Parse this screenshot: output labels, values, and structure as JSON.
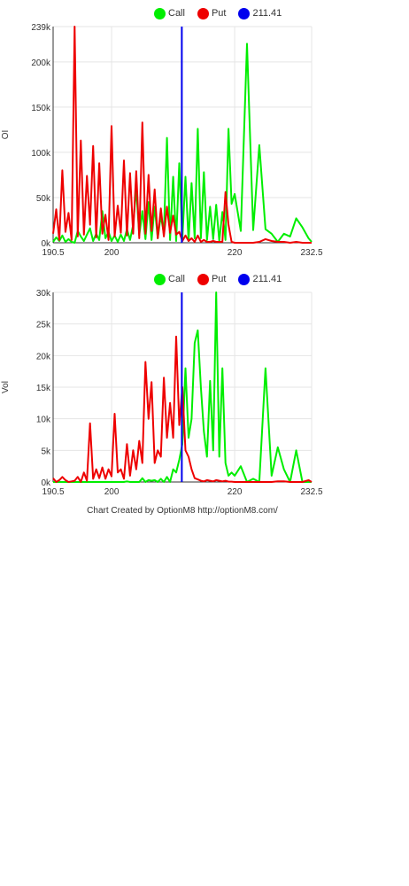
{
  "legend": {
    "call_label": "Call",
    "put_label": "Put",
    "price_label": "211.41",
    "call_color": "#00ee00",
    "put_color": "#ee0000",
    "price_color": "#0000ee"
  },
  "footer": "Chart Created by OptionM8 http://optionM8.com/",
  "chart_data": [
    {
      "type": "line",
      "ylabel": "OI",
      "xlim": [
        190.5,
        232.5
      ],
      "ylim": [
        0,
        239000
      ],
      "x_ticks": [
        190.5,
        200,
        220,
        232.5
      ],
      "x_tick_labels": [
        "190.5",
        "200",
        "220",
        "232.5"
      ],
      "y_ticks": [
        0,
        50000,
        100000,
        150000,
        200000,
        239000
      ],
      "y_tick_labels": [
        "0k",
        "50k",
        "100k",
        "150k",
        "200k",
        "239k"
      ],
      "grid": true,
      "legend_position": "top",
      "vline": {
        "name": "211.41",
        "x": 211.41
      },
      "series": [
        {
          "name": "Call",
          "x": [
            190.5,
            191,
            191.5,
            192,
            192.5,
            193,
            193.5,
            194,
            194.5,
            195,
            195.5,
            196,
            196.5,
            197,
            197.5,
            198,
            198.5,
            199,
            199.5,
            200,
            200.5,
            201,
            201.5,
            202,
            202.5,
            203,
            203.5,
            204,
            204.5,
            205,
            205.5,
            206,
            206.5,
            207,
            207.5,
            208,
            208.5,
            209,
            209.5,
            210,
            210.5,
            211,
            211.5,
            212,
            212.5,
            213,
            213.5,
            214,
            214.5,
            215,
            215.5,
            216,
            216.5,
            217,
            217.5,
            218,
            218.5,
            219,
            219.5,
            220,
            221,
            222,
            223,
            224,
            225,
            226,
            227,
            228,
            229,
            230,
            231,
            232,
            232.5
          ],
          "values": [
            1000,
            6000,
            2000,
            8000,
            1000,
            4000,
            1000,
            0,
            13000,
            7000,
            2000,
            9000,
            16000,
            2000,
            10000,
            3000,
            35000,
            5000,
            12000,
            2000,
            8000,
            1000,
            9000,
            2000,
            15000,
            3000,
            20000,
            60000,
            8000,
            35000,
            4000,
            45000,
            3000,
            40000,
            5000,
            30000,
            10000,
            116000,
            3000,
            73000,
            2000,
            88000,
            5000,
            73000,
            2000,
            66000,
            5000,
            126000,
            5000,
            78000,
            3000,
            40000,
            4000,
            42000,
            2000,
            34000,
            3000,
            126000,
            43000,
            54000,
            13000,
            220000,
            14000,
            108000,
            15000,
            10000,
            1000,
            10000,
            7000,
            27000,
            17000,
            5000,
            1000
          ]
        },
        {
          "name": "Put",
          "x": [
            190.5,
            191,
            191.5,
            192,
            192.5,
            193,
            193.5,
            194,
            194.5,
            195,
            195.5,
            196,
            196.5,
            197,
            197.5,
            198,
            198.5,
            199,
            199.5,
            200,
            200.5,
            201,
            201.5,
            202,
            202.5,
            203,
            203.5,
            204,
            204.5,
            205,
            205.5,
            206,
            206.5,
            207,
            207.5,
            208,
            208.5,
            209,
            209.5,
            210,
            210.5,
            211,
            211.5,
            212,
            212.5,
            213,
            213.5,
            214,
            214.5,
            215,
            215.5,
            216,
            216.5,
            217,
            217.5,
            218,
            218.5,
            219,
            219.5,
            220,
            221,
            222,
            223,
            224,
            225,
            226,
            227,
            228,
            229,
            230,
            231,
            232,
            232.5
          ],
          "values": [
            10000,
            37000,
            3000,
            80000,
            12000,
            33000,
            3000,
            239000,
            7000,
            113000,
            9000,
            74000,
            20000,
            107000,
            6000,
            88000,
            10000,
            31000,
            3000,
            129000,
            7000,
            41000,
            11000,
            91000,
            8000,
            77000,
            10000,
            79000,
            5000,
            133000,
            10000,
            75000,
            13000,
            59000,
            5000,
            38000,
            7000,
            40000,
            11000,
            30000,
            9000,
            12000,
            2000,
            8000,
            2000,
            5000,
            1000,
            8000,
            1000,
            3000,
            1000,
            1000,
            2000,
            1000,
            1000,
            1000,
            56000,
            20000,
            1000,
            0,
            0,
            0,
            0,
            1000,
            4000,
            2000,
            1000,
            1000,
            0,
            1000,
            0,
            0,
            0
          ]
        }
      ]
    },
    {
      "type": "line",
      "ylabel": "Vol",
      "xlim": [
        190.5,
        232.5
      ],
      "ylim": [
        0,
        30000
      ],
      "x_ticks": [
        190.5,
        200,
        220,
        232.5
      ],
      "x_tick_labels": [
        "190.5",
        "200",
        "220",
        "232.5"
      ],
      "y_ticks": [
        0,
        5000,
        10000,
        15000,
        20000,
        25000,
        30000
      ],
      "y_tick_labels": [
        "0k",
        "5k",
        "10k",
        "15k",
        "20k",
        "25k",
        "30k"
      ],
      "grid": true,
      "legend_position": "top",
      "vline": {
        "name": "211.41",
        "x": 211.41
      },
      "series": [
        {
          "name": "Call",
          "x": [
            190.5,
            191,
            191.5,
            192,
            192.5,
            193,
            193.5,
            194,
            194.5,
            195,
            195.5,
            196,
            196.5,
            197,
            197.5,
            198,
            198.5,
            199,
            199.5,
            200,
            200.5,
            201,
            201.5,
            202,
            202.5,
            203,
            203.5,
            204,
            204.5,
            205,
            205.5,
            206,
            206.5,
            207,
            207.5,
            208,
            208.5,
            209,
            209.5,
            210,
            210.5,
            211,
            211.5,
            212,
            212.5,
            213,
            213.5,
            214,
            214.5,
            215,
            215.5,
            216,
            216.5,
            217,
            217.5,
            218,
            218.5,
            219,
            219.5,
            220,
            221,
            222,
            223,
            224,
            225,
            226,
            227,
            228,
            229,
            230,
            231,
            232,
            232.5
          ],
          "values": [
            0,
            0,
            0,
            0,
            0,
            0,
            0,
            0,
            0,
            0,
            0,
            0,
            0,
            0,
            0,
            0,
            0,
            0,
            0,
            0,
            0,
            0,
            0,
            0,
            100,
            0,
            0,
            0,
            0,
            600,
            0,
            300,
            200,
            300,
            0,
            500,
            0,
            800,
            0,
            2000,
            1500,
            3500,
            6000,
            18000,
            7000,
            10000,
            22000,
            24000,
            15000,
            8000,
            4000,
            16000,
            5000,
            30000,
            4000,
            18000,
            3000,
            1000,
            1500,
            1000,
            2500,
            0,
            500,
            0,
            18000,
            1000,
            5500,
            2000,
            0,
            5000,
            0,
            0,
            0
          ]
        },
        {
          "name": "Put",
          "x": [
            190.5,
            191,
            191.5,
            192,
            192.5,
            193,
            193.5,
            194,
            194.5,
            195,
            195.5,
            196,
            196.5,
            197,
            197.5,
            198,
            198.5,
            199,
            199.5,
            200,
            200.5,
            201,
            201.5,
            202,
            202.5,
            203,
            203.5,
            204,
            204.5,
            205,
            205.5,
            206,
            206.5,
            207,
            207.5,
            208,
            208.5,
            209,
            209.5,
            210,
            210.5,
            211,
            211.5,
            212,
            212.5,
            213,
            213.5,
            214,
            214.5,
            215,
            215.5,
            216,
            216.5,
            217,
            217.5,
            218,
            218.5,
            219,
            219.5,
            220,
            221,
            222,
            223,
            224,
            225,
            226,
            227,
            228,
            229,
            230,
            231,
            232,
            232.5
          ],
          "values": [
            600,
            0,
            300,
            800,
            300,
            0,
            100,
            200,
            800,
            0,
            1500,
            200,
            9300,
            500,
            2000,
            600,
            2300,
            500,
            2000,
            900,
            10800,
            1500,
            2000,
            500,
            6000,
            1000,
            5000,
            2000,
            6500,
            3000,
            19000,
            10000,
            15800,
            3000,
            5000,
            4000,
            16500,
            7000,
            12500,
            7000,
            23000,
            9000,
            15000,
            5000,
            4000,
            2000,
            600,
            400,
            200,
            100,
            300,
            200,
            100,
            300,
            200,
            100,
            200,
            50,
            50,
            0,
            0,
            0,
            0,
            0,
            0,
            0,
            100,
            100,
            0,
            0,
            0,
            300,
            0
          ]
        }
      ]
    }
  ]
}
